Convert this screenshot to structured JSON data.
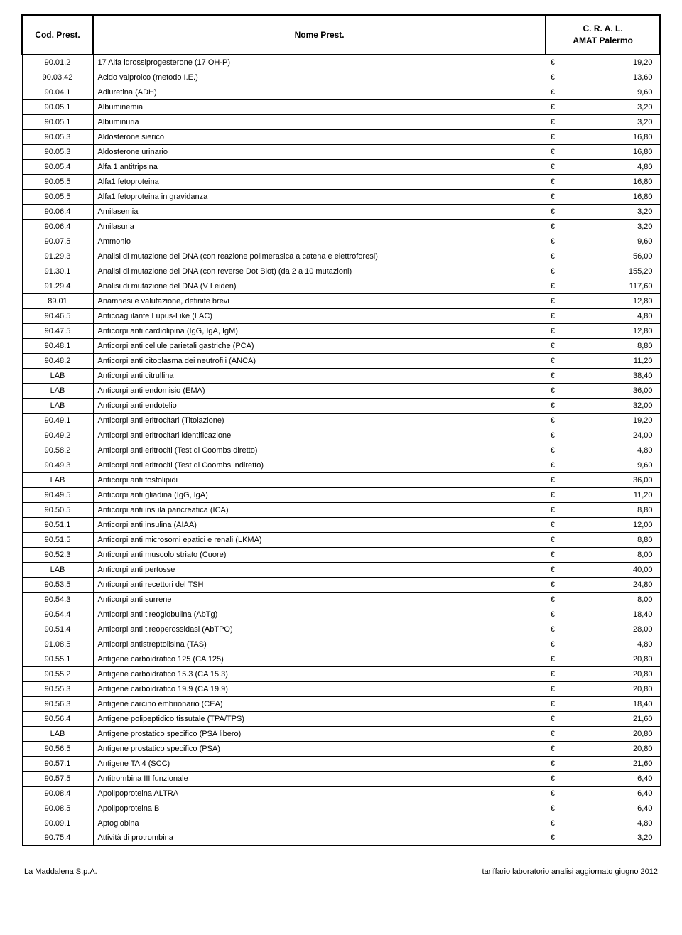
{
  "header": {
    "col1": "Cod. Prest.",
    "col2": "Nome Prest.",
    "col3_line1": "C. R. A. L.",
    "col3_line2": "AMAT Palermo"
  },
  "currency": "€",
  "rows": [
    {
      "code": "90.01.2",
      "name": "17 Alfa idrossiprogesterone (17 OH-P)",
      "price": "19,20"
    },
    {
      "code": "90.03.42",
      "name": "Acido valproico (metodo I.E.)",
      "price": "13,60"
    },
    {
      "code": "90.04.1",
      "name": "Adiuretina (ADH)",
      "price": "9,60"
    },
    {
      "code": "90.05.1",
      "name": "Albuminemia",
      "price": "3,20"
    },
    {
      "code": "90.05.1",
      "name": "Albuminuria",
      "price": "3,20"
    },
    {
      "code": "90.05.3",
      "name": "Aldosterone sierico",
      "price": "16,80"
    },
    {
      "code": "90.05.3",
      "name": "Aldosterone urinario",
      "price": "16,80"
    },
    {
      "code": "90.05.4",
      "name": "Alfa 1 antitripsina",
      "price": "4,80"
    },
    {
      "code": "90.05.5",
      "name": "Alfa1 fetoproteina",
      "price": "16,80"
    },
    {
      "code": "90.05.5",
      "name": "Alfa1 fetoproteina in gravidanza",
      "price": "16,80"
    },
    {
      "code": "90.06.4",
      "name": "Amilasemia",
      "price": "3,20"
    },
    {
      "code": "90.06.4",
      "name": "Amilasuria",
      "price": "3,20"
    },
    {
      "code": "90.07.5",
      "name": "Ammonio",
      "price": "9,60"
    },
    {
      "code": "91.29.3",
      "name": "Analisi di mutazione del DNA (con reazione polimerasica a catena e elettroforesi)",
      "price": "56,00"
    },
    {
      "code": "91.30.1",
      "name": "Analisi di mutazione del DNA (con reverse Dot Blot) (da 2 a 10 mutazioni)",
      "price": "155,20"
    },
    {
      "code": "91.29.4",
      "name": "Analisi di mutazione del DNA (V Leiden)",
      "price": "117,60"
    },
    {
      "code": "89.01",
      "name": "Anamnesi e valutazione, definite brevi",
      "price": "12,80"
    },
    {
      "code": "90.46.5",
      "name": "Anticoagulante Lupus-Like (LAC)",
      "price": "4,80"
    },
    {
      "code": "90.47.5",
      "name": "Anticorpi anti cardiolipina (IgG, IgA, IgM)",
      "price": "12,80"
    },
    {
      "code": "90.48.1",
      "name": "Anticorpi anti cellule parietali gastriche (PCA)",
      "price": "8,80"
    },
    {
      "code": "90.48.2",
      "name": "Anticorpi anti citoplasma dei neutrofili (ANCA)",
      "price": "11,20"
    },
    {
      "code": "LAB",
      "name": "Anticorpi anti citrullina",
      "price": "38,40"
    },
    {
      "code": "LAB",
      "name": "Anticorpi anti endomisio (EMA)",
      "price": "36,00"
    },
    {
      "code": "LAB",
      "name": "Anticorpi anti endotelio",
      "price": "32,00"
    },
    {
      "code": "90.49.1",
      "name": "Anticorpi anti eritrocitari (Titolazione)",
      "price": "19,20"
    },
    {
      "code": "90.49.2",
      "name": "Anticorpi anti eritrocitari identificazione",
      "price": "24,00"
    },
    {
      "code": "90.58.2",
      "name": "Anticorpi anti eritrociti (Test di Coombs diretto)",
      "price": "4,80"
    },
    {
      "code": "90.49.3",
      "name": "Anticorpi anti eritrociti (Test di Coombs indiretto)",
      "price": "9,60"
    },
    {
      "code": "LAB",
      "name": "Anticorpi anti fosfolipidi",
      "price": "36,00"
    },
    {
      "code": "90.49.5",
      "name": "Anticorpi anti gliadina (IgG, IgA)",
      "price": "11,20"
    },
    {
      "code": "90.50.5",
      "name": "Anticorpi anti insula pancreatica (ICA)",
      "price": "8,80"
    },
    {
      "code": "90.51.1",
      "name": "Anticorpi anti insulina (AIAA)",
      "price": "12,00"
    },
    {
      "code": "90.51.5",
      "name": "Anticorpi anti microsomi epatici e renali (LKMA)",
      "price": "8,80"
    },
    {
      "code": "90.52.3",
      "name": "Anticorpi anti muscolo striato (Cuore)",
      "price": "8,00"
    },
    {
      "code": "LAB",
      "name": "Anticorpi anti pertosse",
      "price": "40,00"
    },
    {
      "code": "90.53.5",
      "name": "Anticorpi anti recettori del TSH",
      "price": "24,80"
    },
    {
      "code": "90.54.3",
      "name": "Anticorpi anti surrene",
      "price": "8,00"
    },
    {
      "code": "90.54.4",
      "name": "Anticorpi anti tireoglobulina (AbTg)",
      "price": "18,40"
    },
    {
      "code": "90.51.4",
      "name": "Anticorpi anti tireoperossidasi (AbTPO)",
      "price": "28,00"
    },
    {
      "code": "91.08.5",
      "name": "Anticorpi antistreptolisina (TAS)",
      "price": "4,80"
    },
    {
      "code": "90.55.1",
      "name": "Antigene carboidratico 125 (CA 125)",
      "price": "20,80"
    },
    {
      "code": "90.55.2",
      "name": "Antigene carboidratico 15.3 (CA 15.3)",
      "price": "20,80"
    },
    {
      "code": "90.55.3",
      "name": "Antigene carboidratico 19.9 (CA 19.9)",
      "price": "20,80"
    },
    {
      "code": "90.56.3",
      "name": "Antigene carcino embrionario (CEA)",
      "price": "18,40"
    },
    {
      "code": "90.56.4",
      "name": "Antigene polipeptidico tissutale (TPA/TPS)",
      "price": "21,60"
    },
    {
      "code": "LAB",
      "name": "Antigene prostatico specifico (PSA libero)",
      "price": "20,80"
    },
    {
      "code": "90.56.5",
      "name": "Antigene prostatico specifico (PSA)",
      "price": "20,80"
    },
    {
      "code": "90.57.1",
      "name": "Antigene TA 4 (SCC)",
      "price": "21,60"
    },
    {
      "code": "90.57.5",
      "name": "Antitrombina III funzionale",
      "price": "6,40"
    },
    {
      "code": "90.08.4",
      "name": "Apolipoproteina ALTRA",
      "price": "6,40"
    },
    {
      "code": "90.08.5",
      "name": "Apolipoproteina B",
      "price": "6,40"
    },
    {
      "code": "90.09.1",
      "name": "Aptoglobina",
      "price": "4,80"
    },
    {
      "code": "90.75.4",
      "name": "Attività di protrombina",
      "price": "3,20"
    }
  ],
  "footer": {
    "left": "La Maddalena S.p.A.",
    "right": "tariffario laboratorio analisi aggiornato  giugno 2012"
  }
}
